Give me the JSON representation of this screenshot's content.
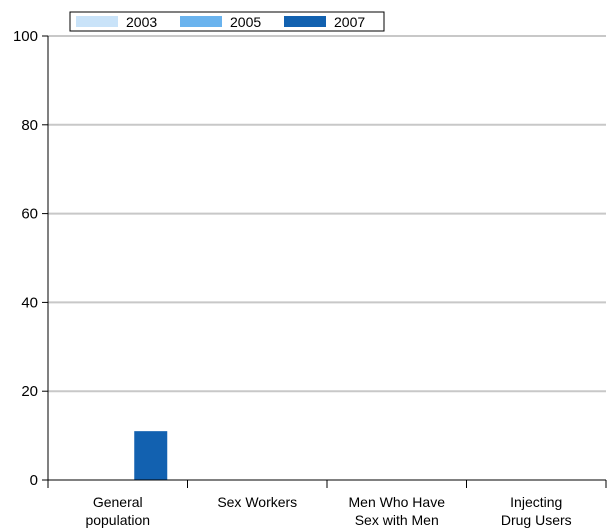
{
  "chart_data": {
    "type": "bar",
    "categories": [
      [
        "General",
        "population"
      ],
      [
        "Sex Workers"
      ],
      [
        "Men Who Have",
        "Sex with Men"
      ],
      [
        "Injecting",
        "Drug Users"
      ]
    ],
    "series": [
      {
        "name": "2003",
        "color": "#c9e3f9",
        "values": [
          0,
          0,
          0,
          0
        ]
      },
      {
        "name": "2005",
        "color": "#6ab3ee",
        "values": [
          0,
          0,
          0,
          0
        ]
      },
      {
        "name": "2007",
        "color": "#1261b0",
        "values": [
          11,
          0,
          0,
          0
        ]
      }
    ],
    "ylim": [
      0,
      100
    ],
    "yticks": [
      0,
      20,
      40,
      60,
      80,
      100
    ],
    "grid": true,
    "legend_position": "top-left"
  }
}
